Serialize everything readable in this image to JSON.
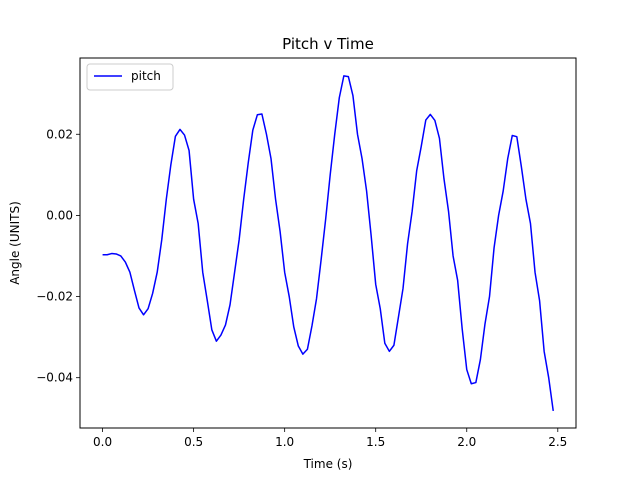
{
  "chart_data": {
    "type": "line",
    "title": "Pitch v Time",
    "xlabel": "Time (s)",
    "ylabel": "Angle (UNITS)",
    "xlim": [
      -0.124,
      2.6
    ],
    "ylim": [
      -0.0524,
      0.0388
    ],
    "xticks": [
      0.0,
      0.5,
      1.0,
      1.5,
      2.0,
      2.5
    ],
    "xtick_labels": [
      "0.0",
      "0.5",
      "1.0",
      "1.5",
      "2.0",
      "2.5"
    ],
    "yticks": [
      -0.04,
      -0.02,
      0.0,
      0.02
    ],
    "ytick_labels": [
      "−0.04",
      "−0.02",
      "0.00",
      "0.02"
    ],
    "grid": false,
    "legend_placement": "top-left",
    "series": [
      {
        "name": "pitch",
        "color": "#0000ff",
        "x": [
          0.0,
          0.025,
          0.05,
          0.075,
          0.1,
          0.125,
          0.15,
          0.175,
          0.2,
          0.225,
          0.25,
          0.275,
          0.3,
          0.325,
          0.35,
          0.375,
          0.4,
          0.425,
          0.45,
          0.475,
          0.5,
          0.525,
          0.55,
          0.575,
          0.6,
          0.625,
          0.65,
          0.675,
          0.7,
          0.725,
          0.75,
          0.775,
          0.8,
          0.825,
          0.85,
          0.875,
          0.9,
          0.925,
          0.95,
          0.975,
          1.0,
          1.025,
          1.05,
          1.075,
          1.1,
          1.125,
          1.15,
          1.175,
          1.2,
          1.225,
          1.25,
          1.275,
          1.3,
          1.325,
          1.35,
          1.375,
          1.4,
          1.425,
          1.45,
          1.475,
          1.5,
          1.525,
          1.55,
          1.575,
          1.6,
          1.625,
          1.65,
          1.675,
          1.7,
          1.725,
          1.75,
          1.775,
          1.8,
          1.825,
          1.85,
          1.875,
          1.9,
          1.925,
          1.95,
          1.975,
          2.0,
          2.025,
          2.05,
          2.075,
          2.1,
          2.125,
          2.15,
          2.175,
          2.2,
          2.225,
          2.25,
          2.275,
          2.3,
          2.325,
          2.35,
          2.375,
          2.4,
          2.425,
          2.45,
          2.475
        ],
        "values": [
          -0.0097,
          -0.0097,
          -0.0094,
          -0.0095,
          -0.01,
          -0.0115,
          -0.014,
          -0.0185,
          -0.0228,
          -0.0245,
          -0.023,
          -0.0192,
          -0.014,
          -0.006,
          0.004,
          0.0125,
          0.0195,
          0.0212,
          0.0198,
          0.016,
          0.004,
          -0.002,
          -0.014,
          -0.021,
          -0.0282,
          -0.031,
          -0.0295,
          -0.027,
          -0.022,
          -0.014,
          -0.006,
          0.004,
          0.013,
          0.021,
          0.0248,
          0.025,
          0.02,
          0.014,
          0.004,
          -0.004,
          -0.014,
          -0.02,
          -0.0275,
          -0.0322,
          -0.0342,
          -0.033,
          -0.0272,
          -0.0205,
          -0.011,
          -0.001,
          0.01,
          0.02,
          0.029,
          0.0344,
          0.0342,
          0.0295,
          0.02,
          0.014,
          0.006,
          -0.005,
          -0.017,
          -0.023,
          -0.0315,
          -0.0335,
          -0.032,
          -0.025,
          -0.018,
          -0.007,
          0.001,
          0.011,
          0.017,
          0.0235,
          0.0249,
          0.0234,
          0.019,
          0.009,
          0.001,
          -0.01,
          -0.016,
          -0.028,
          -0.038,
          -0.0415,
          -0.0412,
          -0.0355,
          -0.0268,
          -0.02,
          -0.008,
          0.0,
          0.006,
          0.014,
          0.0197,
          0.0194,
          0.012,
          0.004,
          -0.002,
          -0.014,
          -0.021,
          -0.0335,
          -0.04,
          -0.0482
        ]
      }
    ]
  }
}
